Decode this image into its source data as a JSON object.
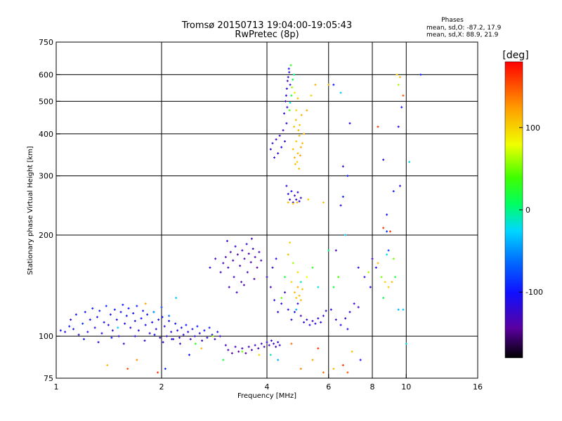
{
  "title": {
    "line1": "Tromsø 20150713 19:04:00-19:05:43",
    "line2": "RwPretec (8p)"
  },
  "phases_box": {
    "heading": "Phases",
    "line_o": "mean, sd,O: -87.2, 17.9",
    "line_x": "mean, sd,X:  88.9, 21.9"
  },
  "colorbar": {
    "label": "[deg]",
    "range": [
      -180,
      180
    ],
    "ticks": [
      {
        "value": 100,
        "label": "100"
      },
      {
        "value": 0,
        "label": "0"
      },
      {
        "value": -100,
        "label": "-100"
      }
    ]
  },
  "chart_data": {
    "type": "scatter",
    "xlabel": "Frequency [MHz]",
    "ylabel": "Stationary phase Virtual Height [km]",
    "xscale": "log",
    "yscale": "log",
    "xlim": [
      1,
      16
    ],
    "ylim": [
      75,
      750
    ],
    "xticks": [
      {
        "value": 1,
        "label": "1"
      },
      {
        "value": 2,
        "label": "2"
      },
      {
        "value": 4,
        "label": "4"
      },
      {
        "value": 6,
        "label": "6"
      },
      {
        "value": 8,
        "label": "8"
      },
      {
        "value": 10,
        "label": "10"
      },
      {
        "value": 16,
        "label": "16"
      }
    ],
    "yticks": [
      {
        "value": 75,
        "label": "75"
      },
      {
        "value": 100,
        "label": "100"
      },
      {
        "value": 200,
        "label": "200"
      },
      {
        "value": 300,
        "label": "300"
      },
      {
        "value": 400,
        "label": "400"
      },
      {
        "value": 500,
        "label": "500"
      },
      {
        "value": 600,
        "label": "600"
      },
      {
        "value": 750,
        "label": "750"
      }
    ],
    "grid_x": [
      2,
      4,
      6,
      8,
      10
    ],
    "grid_y": [
      100,
      200,
      300,
      400,
      500,
      600
    ],
    "grid": true,
    "color_quantity": "phase [deg]",
    "points_format": [
      "frequency_MHz",
      "height_km",
      "phase_deg"
    ],
    "points": [
      [
        1.03,
        104,
        -100
      ],
      [
        1.06,
        103,
        -112
      ],
      [
        1.09,
        107,
        -95
      ],
      [
        1.1,
        112,
        -120
      ],
      [
        1.12,
        105,
        -110
      ],
      [
        1.14,
        116,
        -98
      ],
      [
        1.16,
        101,
        -125
      ],
      [
        1.19,
        109,
        -90
      ],
      [
        1.21,
        118,
        -105
      ],
      [
        1.23,
        103,
        -115
      ],
      [
        1.25,
        112,
        -100
      ],
      [
        1.27,
        121,
        -92
      ],
      [
        1.29,
        106,
        -118
      ],
      [
        1.31,
        114,
        -108
      ],
      [
        1.33,
        119,
        -96
      ],
      [
        1.35,
        102,
        -122
      ],
      [
        1.37,
        110,
        -104
      ],
      [
        1.39,
        123,
        -90
      ],
      [
        1.41,
        108,
        -112
      ],
      [
        1.43,
        116,
        -100
      ],
      [
        1.45,
        104,
        -118
      ],
      [
        1.47,
        120,
        -95
      ],
      [
        1.49,
        112,
        -106
      ],
      [
        1.51,
        100,
        -125
      ],
      [
        1.53,
        118,
        -99
      ],
      [
        1.55,
        124,
        -92
      ],
      [
        1.57,
        109,
        -110
      ],
      [
        1.59,
        115,
        -103
      ],
      [
        1.61,
        121,
        -97
      ],
      [
        1.63,
        106,
        -114
      ],
      [
        1.66,
        117,
        -101
      ],
      [
        1.68,
        111,
        -108
      ],
      [
        1.7,
        123,
        -93
      ],
      [
        1.72,
        104,
        -120
      ],
      [
        1.75,
        113,
        -105
      ],
      [
        1.77,
        119,
        -98
      ],
      [
        1.8,
        108,
        -111
      ],
      [
        1.82,
        116,
        -102
      ],
      [
        1.85,
        102,
        -123
      ],
      [
        1.88,
        110,
        -107
      ],
      [
        1.9,
        118,
        -96
      ],
      [
        1.93,
        105,
        -115
      ],
      [
        1.96,
        112,
        -104
      ],
      [
        1.98,
        99,
        -126
      ],
      [
        2.01,
        114,
        -100
      ],
      [
        2.04,
        107,
        -110
      ],
      [
        2.07,
        100,
        -122
      ],
      [
        2.1,
        111,
        -103
      ],
      [
        2.13,
        103,
        -116
      ],
      [
        2.16,
        98,
        -128
      ],
      [
        2.19,
        109,
        -101
      ],
      [
        2.22,
        104,
        -113
      ],
      [
        2.25,
        99,
        -124
      ],
      [
        2.28,
        106,
        -106
      ],
      [
        2.31,
        101,
        -119
      ],
      [
        2.35,
        108,
        -98
      ],
      [
        2.38,
        103,
        -112
      ],
      [
        2.42,
        98,
        -125
      ],
      [
        2.45,
        105,
        -108
      ],
      [
        2.49,
        100,
        -118
      ],
      [
        2.53,
        107,
        -99
      ],
      [
        2.57,
        102,
        -114
      ],
      [
        2.61,
        97,
        -127
      ],
      [
        2.65,
        104,
        -105
      ],
      [
        2.7,
        99,
        -120
      ],
      [
        2.74,
        106,
        -97
      ],
      [
        2.79,
        101,
        -111
      ],
      [
        2.84,
        98,
        -123
      ],
      [
        2.89,
        103,
        -104
      ],
      [
        2.94,
        100,
        -116
      ],
      [
        1.2,
        98,
        -105
      ],
      [
        1.32,
        96,
        -115
      ],
      [
        1.44,
        99,
        -100
      ],
      [
        1.56,
        95,
        -122
      ],
      [
        1.68,
        100,
        -108
      ],
      [
        1.79,
        97,
        -118
      ],
      [
        1.91,
        101,
        -102
      ],
      [
        2.02,
        96,
        -121
      ],
      [
        2.14,
        98,
        -110
      ],
      [
        2.26,
        95,
        -127
      ],
      [
        3.05,
        94,
        -130
      ],
      [
        3.1,
        91,
        -135
      ],
      [
        3.18,
        89,
        -140
      ],
      [
        3.25,
        93,
        -128
      ],
      [
        3.32,
        90,
        -138
      ],
      [
        3.4,
        92,
        -132
      ],
      [
        3.48,
        89,
        -142
      ],
      [
        3.55,
        93,
        -129
      ],
      [
        3.62,
        91,
        -136
      ],
      [
        3.7,
        94,
        -127
      ],
      [
        3.78,
        92,
        -133
      ],
      [
        3.86,
        95,
        -125
      ],
      [
        3.93,
        93,
        -131
      ],
      [
        4.0,
        96,
        -120
      ],
      [
        4.06,
        94,
        -128
      ],
      [
        4.12,
        97,
        -118
      ],
      [
        4.18,
        95,
        -124
      ],
      [
        4.24,
        93,
        -130
      ],
      [
        4.3,
        96,
        -121
      ],
      [
        4.35,
        94,
        -126
      ],
      [
        3.0,
        165,
        -130
      ],
      [
        3.05,
        172,
        -135
      ],
      [
        3.1,
        160,
        -128
      ],
      [
        3.15,
        178,
        -140
      ],
      [
        3.2,
        168,
        -132
      ],
      [
        3.25,
        185,
        -125
      ],
      [
        3.3,
        175,
        -138
      ],
      [
        3.35,
        162,
        -133
      ],
      [
        3.4,
        180,
        -127
      ],
      [
        3.45,
        170,
        -136
      ],
      [
        3.5,
        188,
        -124
      ],
      [
        3.55,
        176,
        -131
      ],
      [
        3.6,
        166,
        -139
      ],
      [
        3.65,
        182,
        -126
      ],
      [
        3.7,
        172,
        -134
      ],
      [
        3.75,
        160,
        -142
      ],
      [
        3.8,
        178,
        -129
      ],
      [
        3.85,
        168,
        -137
      ],
      [
        3.22,
        150,
        -128
      ],
      [
        3.38,
        145,
        -136
      ],
      [
        3.52,
        155,
        -130
      ],
      [
        3.68,
        148,
        -138
      ],
      [
        3.12,
        140,
        -133
      ],
      [
        3.28,
        135,
        -127
      ],
      [
        3.44,
        142,
        -139
      ],
      [
        2.75,
        160,
        -125
      ],
      [
        2.85,
        170,
        -131
      ],
      [
        2.95,
        155,
        -128
      ],
      [
        3.08,
        192,
        -122
      ],
      [
        3.62,
        195,
        -128
      ],
      [
        4.1,
        360,
        -118
      ],
      [
        4.15,
        375,
        -125
      ],
      [
        4.2,
        340,
        -112
      ],
      [
        4.25,
        385,
        -130
      ],
      [
        4.3,
        350,
        -115
      ],
      [
        4.35,
        395,
        -122
      ],
      [
        4.4,
        365,
        -110
      ],
      [
        4.45,
        410,
        -128
      ],
      [
        4.5,
        380,
        -116
      ],
      [
        4.55,
        430,
        -124
      ],
      [
        4.48,
        460,
        -118
      ],
      [
        4.52,
        500,
        -126
      ],
      [
        4.56,
        545,
        -112
      ],
      [
        4.6,
        590,
        -120
      ],
      [
        4.62,
        625,
        -108
      ],
      [
        4.58,
        575,
        -130
      ],
      [
        4.54,
        520,
        -115
      ],
      [
        4.57,
        480,
        -122
      ],
      [
        4.63,
        610,
        -105
      ],
      [
        4.66,
        560,
        -118
      ],
      [
        4.64,
        470,
        40
      ],
      [
        4.7,
        520,
        20
      ],
      [
        4.74,
        580,
        10
      ],
      [
        4.68,
        640,
        30
      ],
      [
        4.78,
        600,
        0
      ],
      [
        4.72,
        550,
        60
      ],
      [
        4.66,
        495,
        -20
      ],
      [
        4.8,
        530,
        90
      ],
      [
        4.85,
        470,
        100
      ],
      [
        4.9,
        510,
        110
      ],
      [
        4.75,
        360,
        110
      ],
      [
        4.8,
        340,
        115
      ],
      [
        4.85,
        380,
        105
      ],
      [
        4.9,
        350,
        112
      ],
      [
        4.95,
        395,
        108
      ],
      [
        5.0,
        365,
        118
      ],
      [
        4.88,
        330,
        102
      ],
      [
        4.92,
        410,
        114
      ],
      [
        4.98,
        345,
        120
      ],
      [
        5.05,
        375,
        110
      ],
      [
        4.78,
        420,
        106
      ],
      [
        4.84,
        440,
        112
      ],
      [
        4.96,
        425,
        104
      ],
      [
        5.02,
        455,
        116
      ],
      [
        5.1,
        400,
        108
      ],
      [
        5.2,
        470,
        120
      ],
      [
        5.35,
        520,
        100
      ],
      [
        5.5,
        560,
        115
      ],
      [
        4.82,
        325,
        110
      ],
      [
        4.94,
        315,
        105
      ],
      [
        4.55,
        280,
        -120
      ],
      [
        4.6,
        265,
        -112
      ],
      [
        4.65,
        255,
        -125
      ],
      [
        4.7,
        270,
        -108
      ],
      [
        4.75,
        250,
        -118
      ],
      [
        4.8,
        262,
        -128
      ],
      [
        4.85,
        255,
        -115
      ],
      [
        4.9,
        268,
        -122
      ],
      [
        4.95,
        252,
        -110
      ],
      [
        5.0,
        258,
        -126
      ],
      [
        4.6,
        250,
        110
      ],
      [
        4.75,
        248,
        100
      ],
      [
        4.88,
        250,
        115
      ],
      [
        5.25,
        255,
        105
      ],
      [
        5.8,
        250,
        110
      ],
      [
        4.0,
        150,
        -120
      ],
      [
        4.1,
        140,
        -128
      ],
      [
        4.2,
        128,
        -115
      ],
      [
        4.3,
        118,
        -124
      ],
      [
        4.4,
        125,
        -110
      ],
      [
        4.5,
        135,
        -130
      ],
      [
        4.6,
        120,
        -118
      ],
      [
        4.7,
        112,
        -126
      ],
      [
        4.8,
        118,
        -112
      ],
      [
        4.9,
        125,
        -122
      ],
      [
        5.0,
        115,
        -130
      ],
      [
        5.1,
        110,
        -116
      ],
      [
        5.2,
        112,
        -124
      ],
      [
        5.3,
        108,
        -114
      ],
      [
        5.4,
        111,
        -128
      ],
      [
        5.5,
        109,
        -118
      ],
      [
        5.6,
        113,
        -125
      ],
      [
        5.7,
        110,
        -112
      ],
      [
        5.8,
        115,
        -120
      ],
      [
        5.9,
        119,
        -128
      ],
      [
        6.1,
        120,
        -118
      ],
      [
        6.3,
        112,
        -126
      ],
      [
        6.5,
        108,
        -114
      ],
      [
        6.7,
        113,
        -122
      ],
      [
        6.9,
        118,
        -112
      ],
      [
        7.1,
        125,
        -120
      ],
      [
        7.3,
        122,
        -128
      ],
      [
        6.8,
        105,
        -116
      ],
      [
        4.15,
        160,
        -124
      ],
      [
        4.25,
        170,
        -112
      ],
      [
        4.8,
        135,
        110
      ],
      [
        4.85,
        130,
        105
      ],
      [
        4.9,
        140,
        115
      ],
      [
        4.95,
        132,
        108
      ],
      [
        5.0,
        128,
        112
      ],
      [
        5.05,
        138,
        104
      ],
      [
        4.7,
        145,
        100
      ],
      [
        4.9,
        155,
        95
      ],
      [
        4.6,
        175,
        110
      ],
      [
        4.65,
        190,
        100
      ],
      [
        4.75,
        165,
        60
      ],
      [
        5.2,
        150,
        80
      ],
      [
        5.4,
        160,
        30
      ],
      [
        4.5,
        150,
        20
      ],
      [
        5.6,
        140,
        -20
      ],
      [
        4.85,
        120,
        -40
      ],
      [
        5.0,
        145,
        -10
      ],
      [
        4.4,
        130,
        50
      ],
      [
        6.0,
        180,
        0
      ],
      [
        6.4,
        150,
        40
      ],
      [
        7.3,
        160,
        -110
      ],
      [
        7.6,
        150,
        -120
      ],
      [
        7.9,
        140,
        -115
      ],
      [
        8.2,
        160,
        -110
      ],
      [
        8.5,
        150,
        50
      ],
      [
        8.7,
        145,
        100
      ],
      [
        8.9,
        140,
        105
      ],
      [
        9.1,
        145,
        110
      ],
      [
        9.3,
        150,
        20
      ],
      [
        8.3,
        165,
        110
      ],
      [
        8.0,
        170,
        -130
      ],
      [
        8.8,
        175,
        -20
      ],
      [
        7.8,
        155,
        60
      ],
      [
        8.6,
        130,
        10
      ],
      [
        9.5,
        120,
        -40
      ],
      [
        6.2,
        140,
        20
      ],
      [
        6.2,
        560,
        -105
      ],
      [
        6.5,
        530,
        -30
      ],
      [
        6.9,
        430,
        -110
      ],
      [
        6.8,
        300,
        -95
      ],
      [
        6.5,
        245,
        -120
      ],
      [
        6.7,
        200,
        -30
      ],
      [
        6.3,
        180,
        -130
      ],
      [
        6.6,
        320,
        -120
      ],
      [
        6.0,
        560,
        110
      ],
      [
        6.6,
        260,
        -90
      ],
      [
        8.3,
        420,
        160
      ],
      [
        8.6,
        210,
        160
      ],
      [
        8.8,
        230,
        -100
      ],
      [
        8.8,
        205,
        -90
      ],
      [
        9.0,
        205,
        160
      ],
      [
        8.6,
        335,
        -110
      ],
      [
        9.2,
        270,
        -95
      ],
      [
        9.5,
        420,
        -110
      ],
      [
        9.6,
        590,
        110
      ],
      [
        9.5,
        560,
        60
      ],
      [
        9.8,
        520,
        150
      ],
      [
        9.4,
        600,
        100
      ],
      [
        9.7,
        480,
        -100
      ],
      [
        9.6,
        280,
        -120
      ],
      [
        10.2,
        330,
        -20
      ],
      [
        11.0,
        600,
        -90
      ],
      [
        10.0,
        95,
        -20
      ],
      [
        9.8,
        120,
        -30
      ],
      [
        9.2,
        170,
        50
      ],
      [
        8.9,
        180,
        -80
      ],
      [
        5.0,
        80,
        130
      ],
      [
        5.4,
        85,
        120
      ],
      [
        5.8,
        78,
        140
      ],
      [
        6.2,
        80,
        110
      ],
      [
        6.6,
        82,
        160
      ],
      [
        7.0,
        90,
        110
      ],
      [
        7.4,
        85,
        -110
      ],
      [
        6.8,
        78,
        150
      ],
      [
        5.6,
        92,
        160
      ],
      [
        4.7,
        95,
        140
      ],
      [
        1.7,
        85,
        130
      ],
      [
        1.6,
        80,
        150
      ],
      [
        1.4,
        82,
        110
      ],
      [
        1.95,
        78,
        160
      ],
      [
        2.05,
        80,
        -90
      ],
      [
        2.4,
        88,
        -100
      ],
      [
        2.6,
        92,
        110
      ],
      [
        3.0,
        85,
        20
      ],
      [
        3.4,
        90,
        50
      ],
      [
        3.8,
        88,
        100
      ],
      [
        4.1,
        88,
        -10
      ],
      [
        4.3,
        85,
        -40
      ],
      [
        2.2,
        130,
        -30
      ],
      [
        2.1,
        115,
        -60
      ],
      [
        1.9,
        118,
        -40
      ],
      [
        1.8,
        125,
        120
      ],
      [
        2.0,
        122,
        -80
      ],
      [
        1.5,
        106,
        -30
      ],
      [
        2.5,
        95,
        30
      ],
      [
        2.8,
        100,
        60
      ]
    ]
  }
}
